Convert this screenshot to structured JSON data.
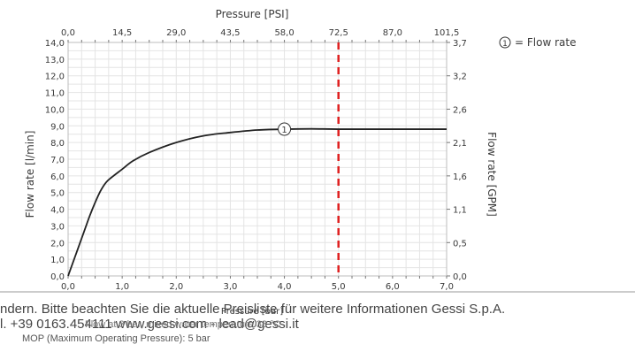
{
  "chart_data": {
    "type": "line",
    "title": "Pressure [PSI]",
    "x_label_bottom": "Pressure [bar]",
    "y_label_left": "Flow rate [l/min]",
    "y_label_right": "Flow rate [GPM]",
    "x_bar_ticks": [
      "0,0",
      "1,0",
      "2,0",
      "3,0",
      "4,0",
      "5,0",
      "6,0",
      "7,0"
    ],
    "x_psi_ticks": [
      "0,0",
      "14,5",
      "29,0",
      "43,5",
      "58,0",
      "72,5",
      "87,0",
      "101,5"
    ],
    "y_lpm_ticks": [
      "0,0",
      "1,0",
      "2,0",
      "3,0",
      "4,0",
      "5,0",
      "6,0",
      "7,0",
      "8,0",
      "9,0",
      "10,0",
      "11,0",
      "12,0",
      "13,0",
      "14,0"
    ],
    "y_gpm_ticks": [
      {
        "label": "0,0",
        "value": 0.0
      },
      {
        "label": "0,5",
        "value": 2.0
      },
      {
        "label": "1,1",
        "value": 4.0
      },
      {
        "label": "1,6",
        "value": 6.0
      },
      {
        "label": "2,1",
        "value": 8.0
      },
      {
        "label": "2,6",
        "value": 10.0
      },
      {
        "label": "3,2",
        "value": 12.0
      },
      {
        "label": "3,7",
        "value": 14.0
      }
    ],
    "xlim": [
      0,
      7
    ],
    "ylim": [
      0,
      14
    ],
    "grid": true,
    "series": [
      {
        "name": "Flow rate",
        "marker_label": "1",
        "color": "#222222",
        "x": [
          0,
          0.1,
          0.2,
          0.3,
          0.4,
          0.5,
          0.6,
          0.7,
          0.8,
          1.0,
          1.2,
          1.5,
          2.0,
          2.5,
          3.0,
          3.5,
          4.0,
          4.5,
          5.0,
          6.0,
          7.0
        ],
        "y": [
          0.0,
          0.9,
          1.8,
          2.7,
          3.6,
          4.4,
          5.1,
          5.6,
          5.9,
          6.4,
          6.9,
          7.4,
          8.0,
          8.4,
          8.6,
          8.75,
          8.8,
          8.82,
          8.8,
          8.8,
          8.8
        ]
      }
    ],
    "legend": {
      "marker": "1",
      "text": "= Flow rate",
      "position": "top-right"
    },
    "mop_line": {
      "x": 5.0,
      "color": "#e02020",
      "style": "dashed"
    }
  },
  "footer": {
    "line1": "ndern. Bitte beachten Sie die aktuelle Preisliste für weitere Informationen Gessi S.p.A.",
    "line2": "l. +39 0163.454111 www.gessi.com - lead@gessi.it",
    "line3": "MOP (Maximum Operating Pressure): 5 bar",
    "overlap_text": "Flow at 3 bar, mixed water temperature 38 °C"
  }
}
